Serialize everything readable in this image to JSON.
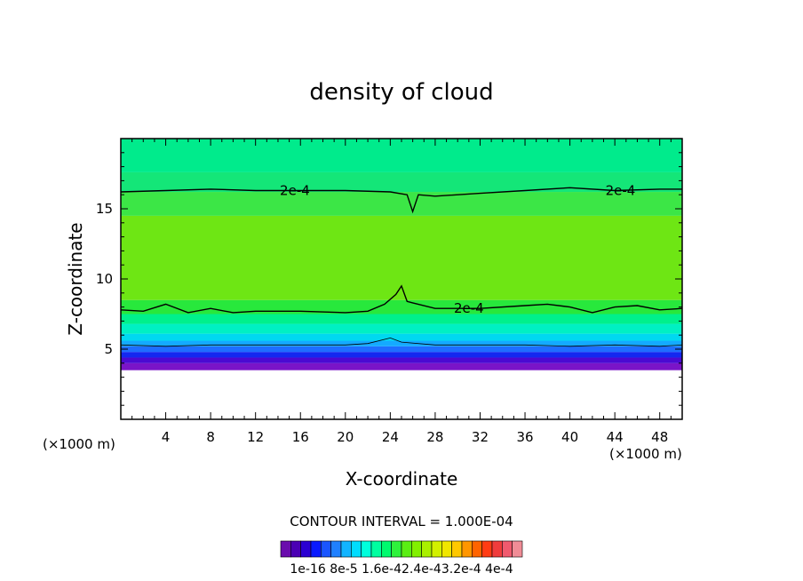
{
  "chart_data": {
    "type": "heatmap",
    "title": "density of cloud",
    "xlabel": "X-coordinate",
    "ylabel": "Z-coordinate",
    "x_unit": "(×1000 m)",
    "y_unit": "(×1000 m)",
    "xlim": [
      0,
      50
    ],
    "ylim": [
      0,
      20
    ],
    "x_ticks": [
      4,
      8,
      12,
      16,
      20,
      24,
      28,
      32,
      36,
      40,
      44,
      48
    ],
    "y_ticks": [
      5,
      10,
      15
    ],
    "contour_interval": "CONTOUR INTERVAL = 1.000E-04",
    "colorbar": {
      "labels": [
        "1e-16",
        "8e-5",
        "1.6e-4",
        "2.4e-4",
        "3.2e-4",
        "4e-4"
      ],
      "label_text": "1e-16 8e-5 1.6e-42.4e-43.2e-4 4e-4",
      "colors": [
        "#6a0dad",
        "#4b00b4",
        "#2b00d2",
        "#0a1aff",
        "#1a55ff",
        "#1f80ff",
        "#12b4ff",
        "#00dcff",
        "#00ffdc",
        "#00ffa0",
        "#00fa6e",
        "#2ef23c",
        "#5aee14",
        "#82f000",
        "#aaf000",
        "#d2f000",
        "#f0e600",
        "#ffc800",
        "#ff9600",
        "#ff6400",
        "#ff3c14",
        "#f03c3c",
        "#f05a6e",
        "#f08c96"
      ]
    },
    "field_bands": [
      {
        "z_bottom": 3.5,
        "z_top": 4.0,
        "value": "8e-6",
        "color": "#7a14c8"
      },
      {
        "z_bottom": 4.0,
        "z_top": 4.4,
        "value": "2e-5",
        "color": "#4b0ad2"
      },
      {
        "z_bottom": 4.4,
        "z_top": 4.8,
        "value": "4e-5",
        "color": "#1428f0"
      },
      {
        "z_bottom": 4.8,
        "z_top": 5.2,
        "value": "6e-5",
        "color": "#1e6eff"
      },
      {
        "z_bottom": 5.2,
        "z_top": 5.6,
        "value": "9e-5",
        "color": "#14aaff"
      },
      {
        "z_bottom": 5.6,
        "z_top": 6.1,
        "value": "1.2e-4",
        "color": "#00d8f0"
      },
      {
        "z_bottom": 6.1,
        "z_top": 6.8,
        "value": "1.5e-4",
        "color": "#00f0c3"
      },
      {
        "z_bottom": 6.8,
        "z_top": 7.5,
        "value": "1.8e-4",
        "color": "#00f08c"
      },
      {
        "z_bottom": 7.5,
        "z_top": 8.5,
        "value": "2.0e-4",
        "color": "#28e83c"
      },
      {
        "z_bottom": 8.5,
        "z_top": 14.5,
        "value": "2.4e-4",
        "color": "#6ee614"
      },
      {
        "z_bottom": 14.5,
        "z_top": 16.2,
        "value": "2.2e-4",
        "color": "#3ce646"
      },
      {
        "z_bottom": 16.2,
        "z_top": 17.6,
        "value": "1.8e-4",
        "color": "#14e678"
      },
      {
        "z_bottom": 17.6,
        "z_top": 20.0,
        "value": "1.6e-4",
        "color": "#00eb8c"
      }
    ],
    "contours": [
      {
        "level_label": "2e-4",
        "points": [
          [
            0,
            16.2
          ],
          [
            4,
            16.3
          ],
          [
            8,
            16.4
          ],
          [
            12,
            16.3
          ],
          [
            16,
            16.3
          ],
          [
            20,
            16.3
          ],
          [
            24,
            16.2
          ],
          [
            25.5,
            16.0
          ],
          [
            26,
            14.8
          ],
          [
            26.5,
            16.0
          ],
          [
            28,
            15.9
          ],
          [
            32,
            16.1
          ],
          [
            36,
            16.3
          ],
          [
            40,
            16.5
          ],
          [
            44,
            16.3
          ],
          [
            48,
            16.4
          ],
          [
            50,
            16.4
          ]
        ],
        "label_positions": [
          [
            15.5,
            16.3
          ],
          [
            44.5,
            16.3
          ]
        ]
      },
      {
        "level_label": "2e-4",
        "points": [
          [
            0,
            7.8
          ],
          [
            2,
            7.7
          ],
          [
            4,
            8.2
          ],
          [
            6,
            7.6
          ],
          [
            8,
            7.9
          ],
          [
            10,
            7.6
          ],
          [
            12,
            7.7
          ],
          [
            16,
            7.7
          ],
          [
            20,
            7.6
          ],
          [
            22,
            7.7
          ],
          [
            23.5,
            8.2
          ],
          [
            24.5,
            8.9
          ],
          [
            25,
            9.5
          ],
          [
            25.5,
            8.4
          ],
          [
            26,
            8.3
          ],
          [
            28,
            7.9
          ],
          [
            30,
            7.9
          ],
          [
            32,
            7.9
          ],
          [
            36,
            8.1
          ],
          [
            38,
            8.2
          ],
          [
            40,
            8.0
          ],
          [
            42,
            7.6
          ],
          [
            44,
            8.0
          ],
          [
            46,
            8.1
          ],
          [
            48,
            7.8
          ],
          [
            50,
            7.9
          ]
        ],
        "label_positions": [
          [
            31,
            7.9
          ]
        ]
      },
      {
        "level_label": "",
        "points": [
          [
            0,
            5.3
          ],
          [
            4,
            5.2
          ],
          [
            8,
            5.3
          ],
          [
            12,
            5.3
          ],
          [
            16,
            5.3
          ],
          [
            20,
            5.3
          ],
          [
            22,
            5.4
          ],
          [
            24,
            5.8
          ],
          [
            25,
            5.5
          ],
          [
            28,
            5.3
          ],
          [
            32,
            5.3
          ],
          [
            36,
            5.3
          ],
          [
            40,
            5.2
          ],
          [
            44,
            5.3
          ],
          [
            48,
            5.2
          ],
          [
            50,
            5.3
          ]
        ],
        "label_positions": []
      }
    ]
  }
}
